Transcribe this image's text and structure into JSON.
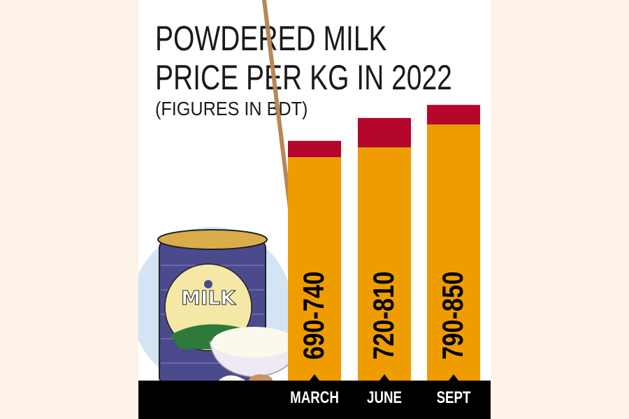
{
  "title_line1": "POWDERED MILK",
  "title_line2": "PRICE PER KG IN 2022",
  "subtitle": "(FIGURES IN BDT)",
  "illustration_text": "MILK",
  "colors": {
    "min_range": "#ef9c00",
    "max_range": "#b5062b",
    "base": "#000000",
    "background": "#fdf3e8",
    "circle": "#d4e4f4",
    "can": "#4b4a8c"
  },
  "chart_data": {
    "type": "bar",
    "subtype": "range (stacked min to max)",
    "categories": [
      "MARCH",
      "JUNE",
      "SEPT"
    ],
    "series": [
      {
        "values": [
          690,
          720,
          790
        ]
      },
      {
        "values": [
          740,
          810,
          850
        ]
      }
    ],
    "labels": [
      "690-740",
      "720-810",
      "790-850"
    ],
    "title": "POWDERED MILK PRICE PER KG IN 2022",
    "subtitle": "(FIGURES IN BDT)",
    "ylim": [
      0,
      850
    ],
    "grid": false
  }
}
